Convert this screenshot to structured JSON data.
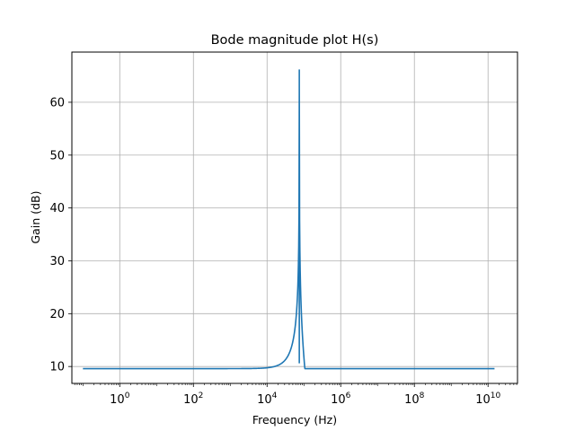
{
  "chart_data": {
    "type": "line",
    "title": "Bode magnitude plot H(s)",
    "xlabel": "Frequency (Hz)",
    "ylabel": "Gain (dB)",
    "xscale": "log",
    "xlim_log10": [
      -1.3,
      10.8
    ],
    "ylim": [
      6.8,
      69.5
    ],
    "grid": true,
    "line_color": "#1f77b4",
    "x_ticks": [
      {
        "base": "10",
        "exp": "0",
        "log10": 0
      },
      {
        "base": "10",
        "exp": "2",
        "log10": 2
      },
      {
        "base": "10",
        "exp": "4",
        "log10": 4
      },
      {
        "base": "10",
        "exp": "6",
        "log10": 6
      },
      {
        "base": "10",
        "exp": "8",
        "log10": 8
      },
      {
        "base": "10",
        "exp": "10",
        "log10": 10
      }
    ],
    "y_ticks": [
      "10",
      "20",
      "30",
      "40",
      "50",
      "60"
    ],
    "series": [
      {
        "resonance_hz": 75000,
        "x": [
          0.1,
          1,
          100,
          10000,
          20000,
          30000,
          40000,
          50000,
          60000,
          70000,
          75000,
          80000,
          100000,
          150000,
          200000,
          300000,
          500000,
          1000000,
          10000000,
          100000000,
          10000000000,
          15000000000
        ],
        "y": [
          9.6,
          9.6,
          9.6,
          10.1,
          10.8,
          12.1,
          14.0,
          17.2,
          22.3,
          33.5,
          66.2,
          33.6,
          20.0,
          14.6,
          12.5,
          11.0,
          10.0,
          9.7,
          9.6,
          9.6,
          9.6,
          9.6
        ]
      }
    ]
  }
}
